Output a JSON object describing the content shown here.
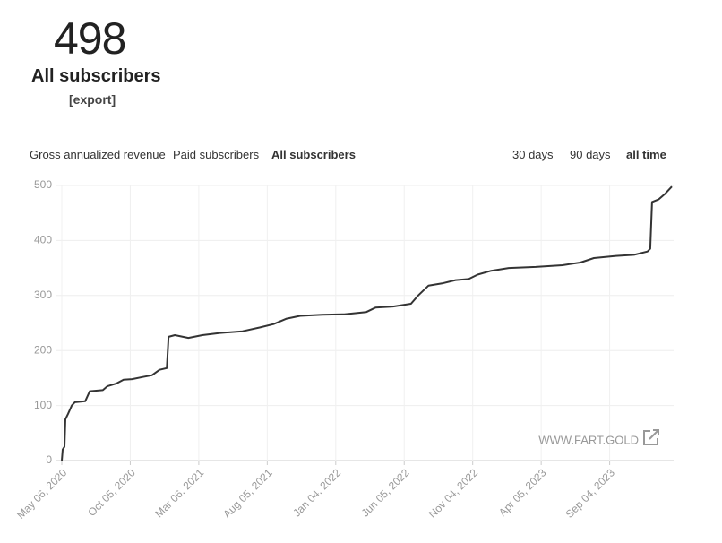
{
  "header": {
    "count": "498",
    "title": "All subscribers",
    "export": "[export]"
  },
  "tabs": {
    "metrics": [
      "Gross annualized revenue",
      "Paid subscribers",
      "All subscribers"
    ],
    "active_metric": 2,
    "ranges": [
      "30 days",
      "90 days",
      "all time"
    ],
    "active_range": 2
  },
  "watermark": "WWW.FART.GOLD",
  "chart_data": {
    "type": "line",
    "color": "#333333",
    "grid": true,
    "x": [
      "May 06, 2020",
      "May 08, 2020",
      "May 12, 2020",
      "May 14, 2020",
      "May 20, 2020",
      "May 28, 2020",
      "Jun 04, 2020",
      "Jun 27, 2020",
      "Jul 07, 2020",
      "Aug 05, 2020",
      "Aug 15, 2020",
      "Sep 04, 2020",
      "Sep 20, 2020",
      "Oct 09, 2020",
      "Nov 02, 2020",
      "Nov 22, 2020",
      "Dec 09, 2020",
      "Dec 25, 2020",
      "Dec 29, 2020",
      "Jan 12, 2021",
      "Feb 11, 2021",
      "Mar 14, 2021",
      "Apr 22, 2021",
      "Jun 11, 2021",
      "Jul 20, 2021",
      "Aug 19, 2021",
      "Sep 17, 2021",
      "Oct 17, 2021",
      "Dec 05, 2021",
      "Jan 23, 2022",
      "Mar 13, 2022",
      "Apr 02, 2022",
      "May 11, 2022",
      "Jun 20, 2022",
      "Jul 06, 2022",
      "Jul 29, 2022",
      "Aug 28, 2022",
      "Sep 27, 2022",
      "Oct 26, 2022",
      "Nov 15, 2022",
      "Dec 15, 2022",
      "Jan 23, 2023",
      "Mar 24, 2023",
      "May 22, 2023",
      "Jul 01, 2023",
      "Jul 31, 2023",
      "Sep 18, 2023",
      "Oct 28, 2023",
      "Nov 27, 2023",
      "Dec 03, 2023",
      "Dec 07, 2023",
      "Dec 22, 2023",
      "Jan 05, 2024",
      "Jan 20, 2024"
    ],
    "values": [
      0,
      20,
      25,
      75,
      85,
      100,
      106,
      108,
      126,
      128,
      135,
      140,
      147,
      148,
      152,
      155,
      165,
      168,
      225,
      228,
      223,
      228,
      232,
      235,
      242,
      248,
      258,
      263,
      265,
      266,
      270,
      278,
      280,
      285,
      300,
      318,
      322,
      328,
      330,
      338,
      345,
      350,
      352,
      355,
      360,
      368,
      372,
      374,
      380,
      385,
      470,
      475,
      485,
      498
    ],
    "xlim": [
      "May 06, 2020",
      "Jan 20, 2024"
    ],
    "xticks": [
      "May 06, 2020",
      "Oct 05, 2020",
      "Mar 06, 2021",
      "Aug 05, 2021",
      "Jan 04, 2022",
      "Jun 05, 2022",
      "Nov 04, 2022",
      "Apr 05, 2023",
      "Sep 04, 2023"
    ],
    "ylim": [
      0,
      500
    ],
    "yticks": [
      0,
      100,
      200,
      300,
      400,
      500
    ]
  }
}
